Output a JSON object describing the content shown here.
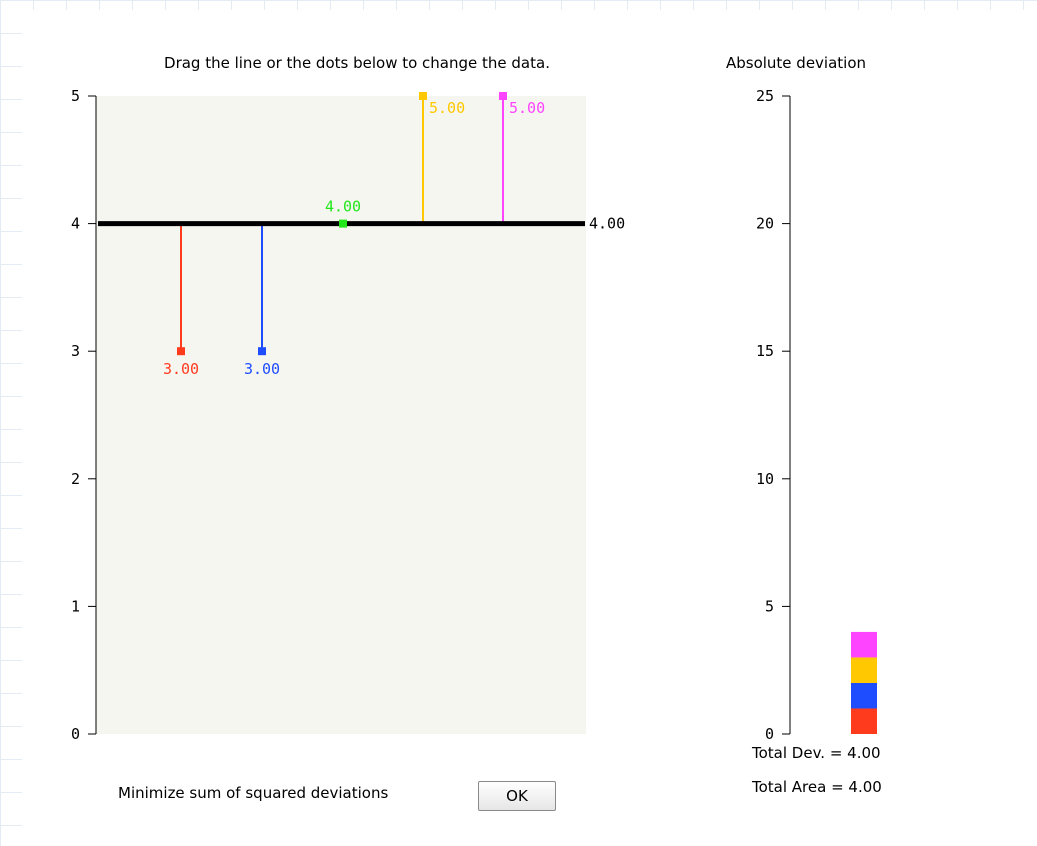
{
  "instruction": "Drag the line or the dots below to change the data.",
  "right_title": "Absolute deviation",
  "minimize_label": "Minimize sum of squared deviations",
  "ok_label": "OK",
  "total_dev": "Total Dev. = 4.00",
  "total_area": "Total Area = 4.00",
  "line_value": 4.0,
  "line_label": "4.00",
  "colors": {
    "plot_bg": "#f6f6f1",
    "line": "#000000"
  },
  "chart_data": [
    {
      "type": "scatter",
      "ylim": [
        0,
        5
      ],
      "y_ticks": [
        "0",
        "1",
        "2",
        "3",
        "4",
        "5"
      ],
      "points": [
        {
          "value": 3.0,
          "label": "3.00",
          "color": "#ff3b1e"
        },
        {
          "value": 3.0,
          "label": "3.00",
          "color": "#1e4dff"
        },
        {
          "value": 4.0,
          "label": "4.00",
          "color": "#22e61a"
        },
        {
          "value": 5.0,
          "label": "5.00",
          "color": "#ffc800"
        },
        {
          "value": 5.0,
          "label": "5.00",
          "color": "#ff44ff"
        }
      ]
    },
    {
      "type": "bar",
      "title": "Absolute deviation",
      "ylim": [
        0,
        25
      ],
      "y_ticks": [
        "0",
        "5",
        "10",
        "15",
        "20",
        "25"
      ],
      "stack": [
        {
          "value": 1,
          "color": "#ff3b1e"
        },
        {
          "value": 1,
          "color": "#1e4dff"
        },
        {
          "value": 1,
          "color": "#ffc800"
        },
        {
          "value": 1,
          "color": "#ff44ff"
        }
      ]
    }
  ]
}
